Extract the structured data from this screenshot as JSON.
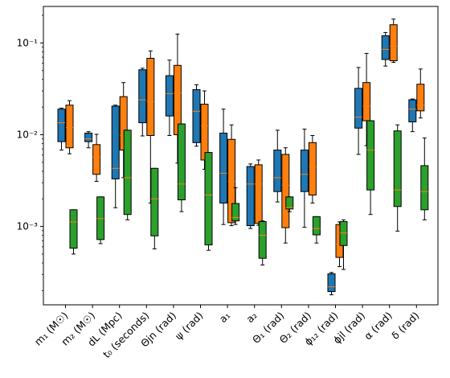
{
  "chart_data": {
    "type": "box",
    "yscale": "log",
    "ylim": [
      0.00014,
      0.25
    ],
    "title": "",
    "xlabel": "",
    "ylabel": "",
    "grid": false,
    "legend": "none",
    "y_ticks": [
      {
        "value": 0.001,
        "label": "10⁻³"
      },
      {
        "value": 0.01,
        "label": "10⁻²"
      },
      {
        "value": 0.1,
        "label": "10⁻¹"
      }
    ],
    "categories": [
      "m₁ (M☉)",
      "m₂ (M☉)",
      "dL (Mpc)",
      "t₀ (seconds)",
      "Θjn (rad)",
      "ψ (rad)",
      "a₁",
      "a₂",
      "Θ₁ (rad)",
      "Θ₂ (rad)",
      "ϕ₁₂ (rad)",
      "ϕjl (rad)",
      "α (rad)",
      "δ (rad)"
    ],
    "series": [
      {
        "color": "#1f77b4",
        "boxes": [
          {
            "min": 0.0068,
            "q1": 0.0084,
            "median": 0.0135,
            "q3": 0.019,
            "max": 0.0195
          },
          {
            "min": 0.0072,
            "q1": 0.0084,
            "median": 0.009,
            "q3": 0.0104,
            "max": 0.0108
          },
          {
            "min": 0.0016,
            "q1": 0.0033,
            "median": 0.0043,
            "q3": 0.0205,
            "max": 0.021
          },
          {
            "min": 0.0097,
            "q1": 0.0135,
            "median": 0.024,
            "q3": 0.051,
            "max": 0.053
          },
          {
            "min": 0.0098,
            "q1": 0.016,
            "median": 0.028,
            "q3": 0.044,
            "max": 0.065
          },
          {
            "min": 0.0075,
            "q1": 0.0082,
            "median": 0.018,
            "q3": 0.031,
            "max": 0.035
          },
          {
            "min": 0.00105,
            "q1": 0.0018,
            "median": 0.0038,
            "q3": 0.0104,
            "max": 0.019
          },
          {
            "min": 0.00095,
            "q1": 0.00102,
            "median": 0.0029,
            "q3": 0.0045,
            "max": 0.0048
          },
          {
            "min": 0.00185,
            "q1": 0.0024,
            "median": 0.0034,
            "q3": 0.0068,
            "max": 0.0112
          },
          {
            "min": 0.00098,
            "q1": 0.0024,
            "median": 0.0037,
            "q3": 0.0068,
            "max": 0.0115
          },
          {
            "min": 0.00018,
            "q1": 0.000195,
            "median": 0.00022,
            "q3": 0.000305,
            "max": 0.000315
          },
          {
            "min": 0.0061,
            "q1": 0.0118,
            "median": 0.0155,
            "q3": 0.032,
            "max": 0.054
          },
          {
            "min": 0.056,
            "q1": 0.066,
            "median": 0.085,
            "q3": 0.12,
            "max": 0.13
          },
          {
            "min": 0.0108,
            "q1": 0.0138,
            "median": 0.019,
            "q3": 0.024,
            "max": 0.0245
          }
        ]
      },
      {
        "color": "#ff7f0e",
        "boxes": [
          {
            "min": 0.0062,
            "q1": 0.0072,
            "median": 0.012,
            "q3": 0.021,
            "max": 0.0235
          },
          {
            "min": 0.0031,
            "q1": 0.0037,
            "median": 0.0057,
            "q3": 0.0078,
            "max": 0.0101
          },
          {
            "min": 0.0034,
            "q1": 0.0068,
            "median": 0.0098,
            "q3": 0.026,
            "max": 0.037
          },
          {
            "min": 0.0018,
            "q1": 0.0098,
            "median": 0.023,
            "q3": 0.068,
            "max": 0.082
          },
          {
            "min": 0.0049,
            "q1": 0.01,
            "median": 0.0285,
            "q3": 0.057,
            "max": 0.125
          },
          {
            "min": 0.0042,
            "q1": 0.0053,
            "median": 0.0125,
            "q3": 0.0215,
            "max": 0.03
          },
          {
            "min": 0.00102,
            "q1": 0.0011,
            "median": 0.0031,
            "q3": 0.0089,
            "max": 0.0128
          },
          {
            "min": 0.00103,
            "q1": 0.00108,
            "median": 0.0029,
            "q3": 0.0047,
            "max": 0.0053
          },
          {
            "min": 0.00066,
            "q1": 0.00097,
            "median": 0.0028,
            "q3": 0.0061,
            "max": 0.0072
          },
          {
            "min": 0.0018,
            "q1": 0.0022,
            "median": 0.0045,
            "q3": 0.0082,
            "max": 0.0098
          },
          {
            "min": 0.000365,
            "q1": 0.00046,
            "median": 0.00064,
            "q3": 0.00105,
            "max": 0.00112
          },
          {
            "min": 0.0076,
            "q1": 0.0142,
            "median": 0.0205,
            "q3": 0.037,
            "max": 0.077
          },
          {
            "min": 0.0615,
            "q1": 0.064,
            "median": 0.092,
            "q3": 0.158,
            "max": 0.182
          },
          {
            "min": 0.0152,
            "q1": 0.0182,
            "median": 0.021,
            "q3": 0.0355,
            "max": 0.052
          }
        ]
      },
      {
        "color": "#2ca02c",
        "boxes": [
          {
            "min": 0.0005,
            "q1": 0.00058,
            "median": 0.00112,
            "q3": 0.00152,
            "max": 0.00152
          },
          {
            "min": 0.00065,
            "q1": 0.00072,
            "median": 0.00122,
            "q3": 0.0021,
            "max": 0.0021
          },
          {
            "min": 0.00118,
            "q1": 0.00135,
            "median": 0.0034,
            "q3": 0.0112,
            "max": 0.0112
          },
          {
            "min": 0.00057,
            "q1": 0.00079,
            "median": 0.002,
            "q3": 0.0043,
            "max": 0.0043
          },
          {
            "min": 0.00145,
            "q1": 0.00195,
            "median": 0.0029,
            "q3": 0.0131,
            "max": 0.0131
          },
          {
            "min": 0.00055,
            "q1": 0.00063,
            "median": 0.0022,
            "q3": 0.0064,
            "max": 0.0064
          },
          {
            "min": 0.00105,
            "q1": 0.00115,
            "median": 0.00125,
            "q3": 0.00178,
            "max": 0.00265
          },
          {
            "min": 0.00038,
            "q1": 0.00045,
            "median": 0.0008,
            "q3": 0.00113,
            "max": 0.00115
          },
          {
            "min": 0.00145,
            "q1": 0.00155,
            "median": 0.0016,
            "q3": 0.0021,
            "max": 0.0021
          },
          {
            "min": 0.00066,
            "q1": 0.00081,
            "median": 0.00095,
            "q3": 0.00128,
            "max": 0.00128
          },
          {
            "min": 0.00034,
            "q1": 0.00062,
            "median": 0.00085,
            "q3": 0.00113,
            "max": 0.00118
          },
          {
            "min": 0.00135,
            "q1": 0.0025,
            "median": 0.0068,
            "q3": 0.0142,
            "max": 0.0142
          },
          {
            "min": 0.00089,
            "q1": 0.00165,
            "median": 0.0025,
            "q3": 0.011,
            "max": 0.0128
          },
          {
            "min": 0.00118,
            "q1": 0.00152,
            "median": 0.0024,
            "q3": 0.0046,
            "max": 0.0092
          }
        ]
      }
    ]
  }
}
